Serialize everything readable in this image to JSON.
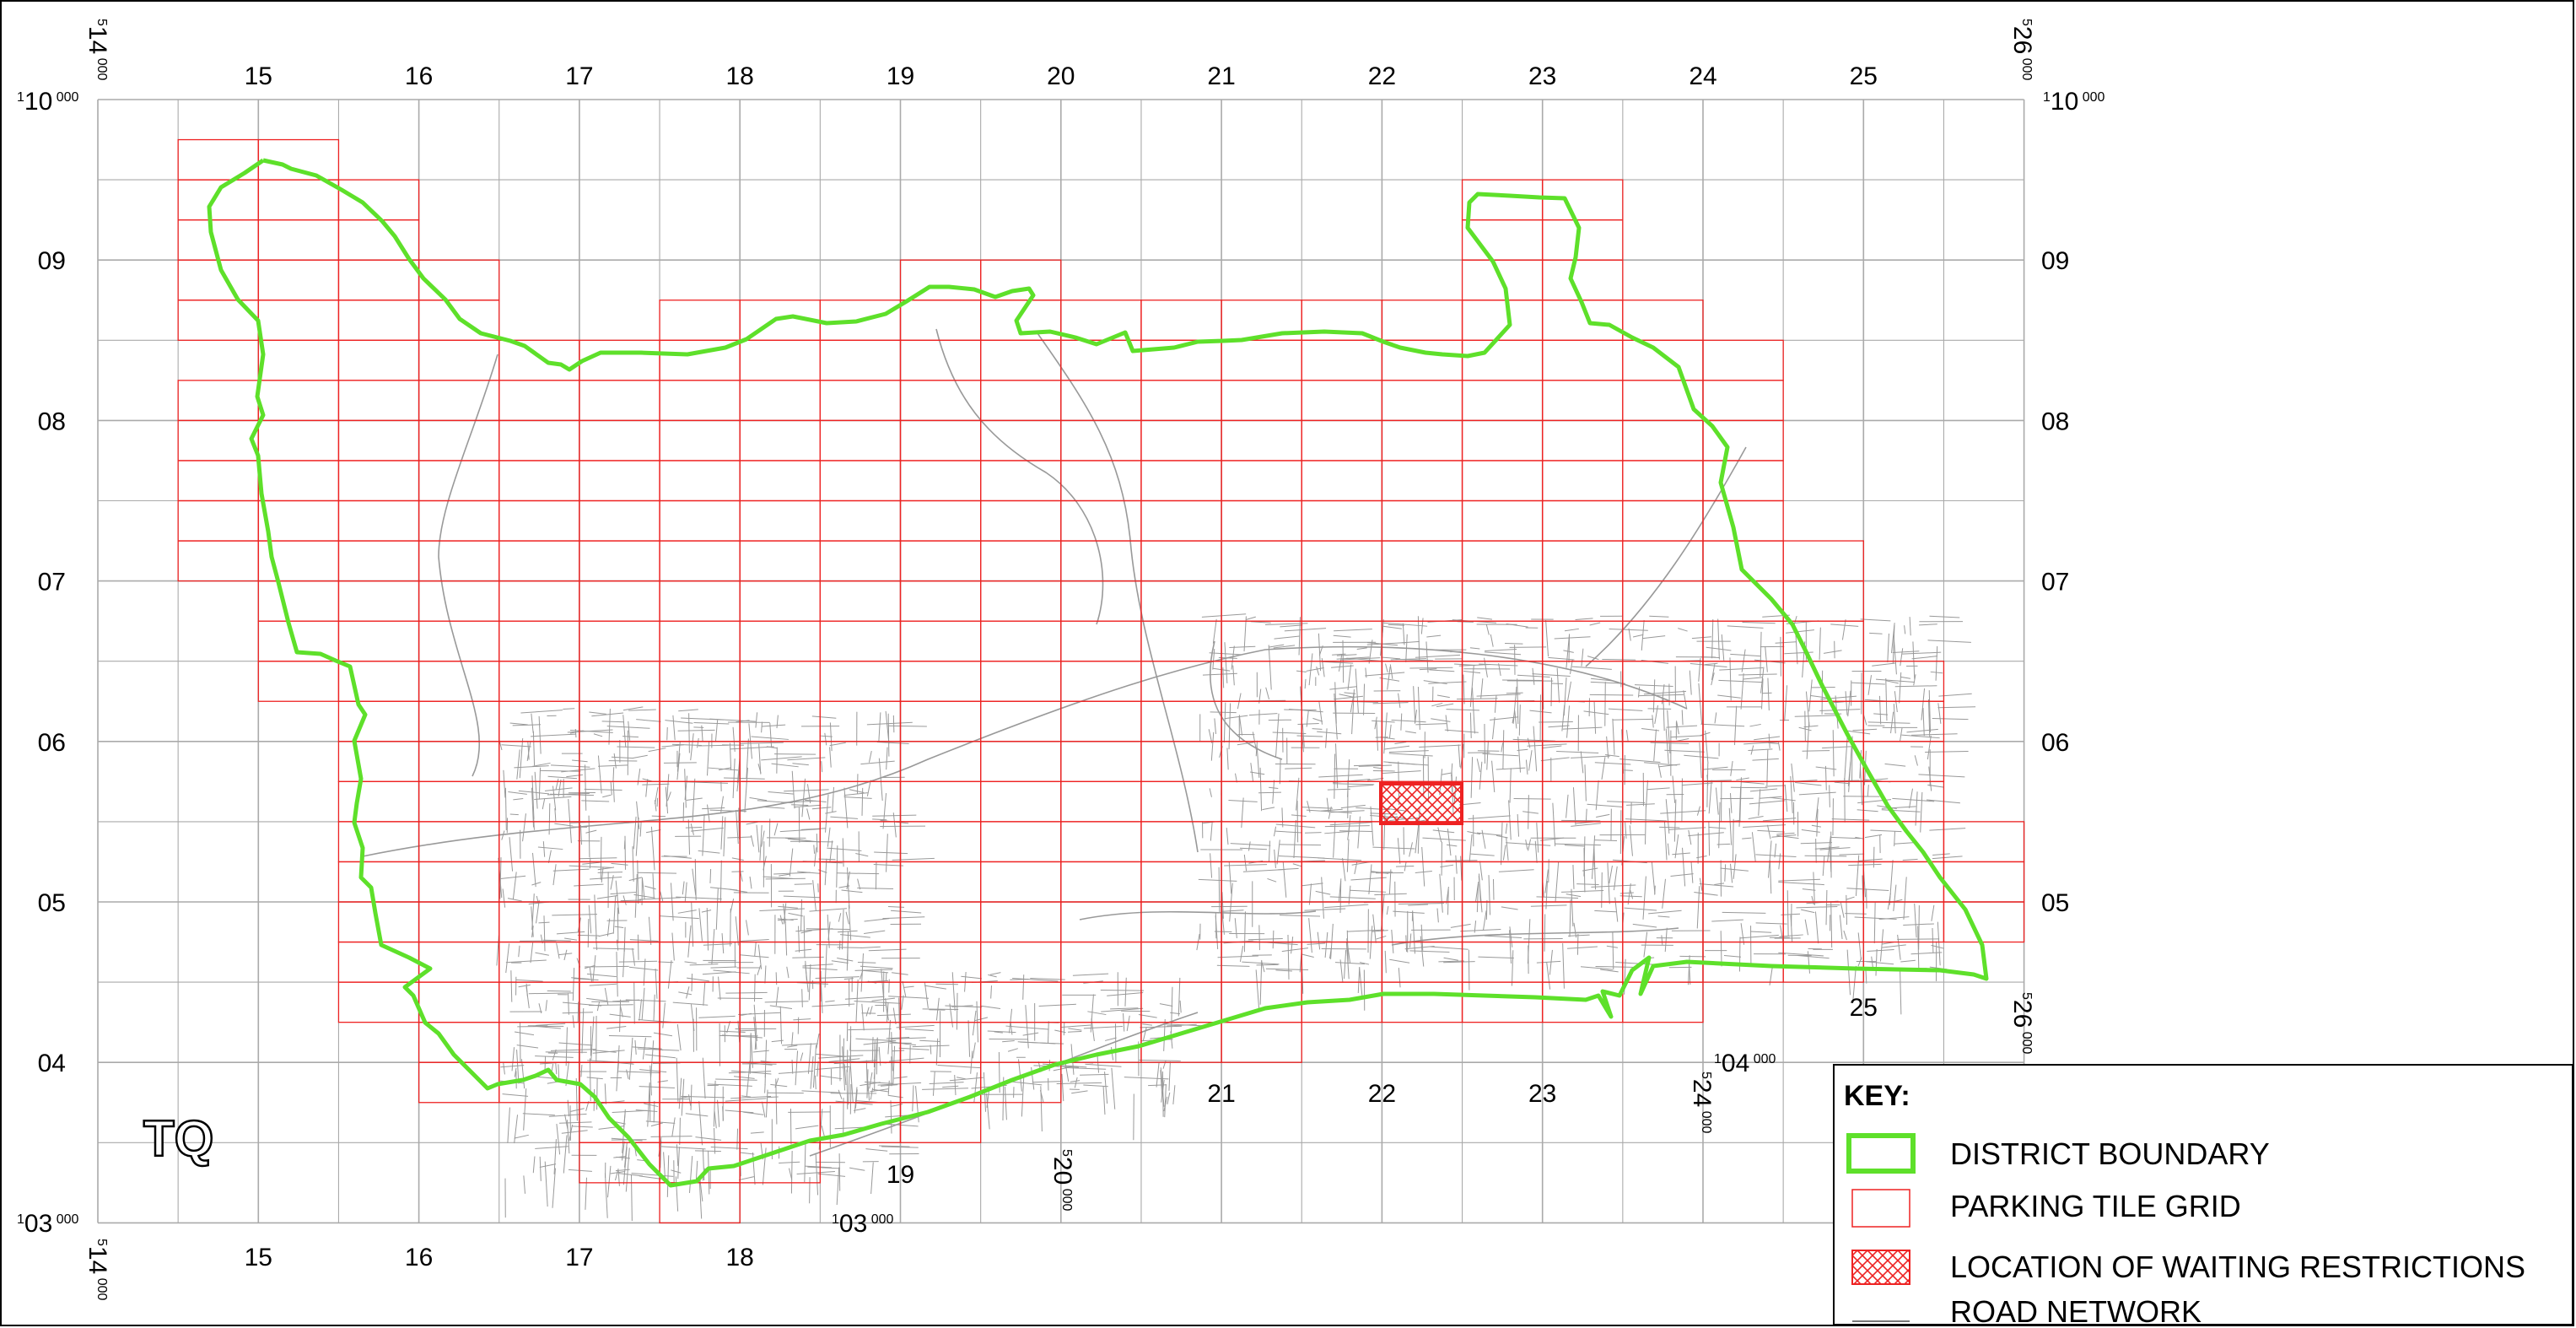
{
  "map": {
    "grid_square_letters": "TQ",
    "corner_labels": {
      "top_left_easting": "14",
      "top_right_easting": "26",
      "bottom_left_easting": "14",
      "bottom_mid_easting": "20",
      "right_lower_easting": "26",
      "right_mid_easting": "24",
      "top_northing": "10",
      "bottom_northing": "03",
      "bottom_mid_northing": "03",
      "right_northing": "04",
      "prefix_east": "5",
      "prefix_north": "1",
      "suffix": "000"
    },
    "top_labels": [
      "15",
      "16",
      "17",
      "18",
      "19",
      "20",
      "21",
      "22",
      "23",
      "24",
      "25"
    ],
    "bottom_labels_left": [
      "15",
      "16",
      "17",
      "18"
    ],
    "bottom_labels_inner": [
      "19"
    ],
    "bottom_labels_right": [
      "21",
      "22",
      "23"
    ],
    "bottom_label_25": "25",
    "left_labels": [
      "09",
      "08",
      "07",
      "06",
      "05",
      "04"
    ],
    "right_labels": [
      "09",
      "08",
      "07",
      "06",
      "05"
    ],
    "colors": {
      "district_boundary": "#5ee02a",
      "parking_grid": "#ee2222",
      "restriction_fill": "#ee2222",
      "road_network": "#999999",
      "os_grid": "#aaaaaa"
    }
  },
  "key": {
    "title": "KEY:",
    "items": [
      {
        "label": "DISTRICT BOUNDARY",
        "icon": "green-boundary-swatch"
      },
      {
        "label": "PARKING TILE GRID",
        "icon": "red-grid-swatch"
      },
      {
        "label": "LOCATION OF WAITING RESTRICTIONS",
        "icon": "red-crosshatch-swatch"
      },
      {
        "label": "ROAD NETWORK",
        "icon": "grey-line-swatch"
      }
    ]
  }
}
